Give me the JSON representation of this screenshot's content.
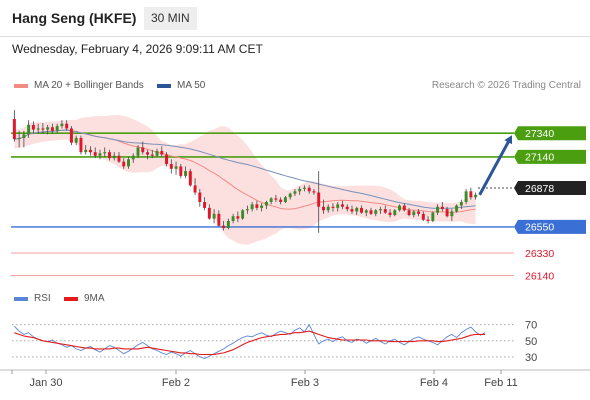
{
  "header": {
    "title": "Hang Seng (HKFE)",
    "timeframe": "30 MIN"
  },
  "date_line": "Wednesday, February 4, 2026 9:09:11 AM CET",
  "legend": {
    "price": [
      {
        "label": "MA 20 + Bollinger Bands",
        "color": "#f28b82"
      },
      {
        "label": "MA 50",
        "color": "#2a5597"
      }
    ],
    "rsi": [
      {
        "label": "RSI",
        "color": "#5b86d6"
      },
      {
        "label": "9MA",
        "color": "#e31b1b"
      }
    ]
  },
  "credit": "Research © 2026 Trading Central",
  "colors": {
    "up": "#3a8c28",
    "down": "#e0162b",
    "resistance": "#4a9e0f",
    "support": "#3a6fd6",
    "target": "#f0a0a0",
    "arrow": "#2a5597"
  },
  "chart_data": [
    {
      "type": "candlestick",
      "ylim": [
        26060,
        27620
      ],
      "x_ticks": [
        "Jan 30",
        "Feb 2",
        "Feb 3",
        "Feb 4",
        "Feb 11"
      ],
      "levels": {
        "resistance": [
          "27340",
          "27140"
        ],
        "last": "26878",
        "support": [
          "26550"
        ],
        "targets": [
          "26330",
          "26140"
        ]
      },
      "ohlc": [
        [
          27460,
          27535,
          27270,
          27290
        ],
        [
          27290,
          27360,
          27220,
          27300
        ],
        [
          27300,
          27360,
          27220,
          27330
        ],
        [
          27330,
          27450,
          27300,
          27410
        ],
        [
          27410,
          27440,
          27340,
          27370
        ],
        [
          27370,
          27420,
          27340,
          27380
        ],
        [
          27380,
          27425,
          27340,
          27370
        ],
        [
          27370,
          27410,
          27330,
          27390
        ],
        [
          27390,
          27420,
          27340,
          27360
        ],
        [
          27360,
          27420,
          27340,
          27400
        ],
        [
          27400,
          27450,
          27380,
          27420
        ],
        [
          27420,
          27450,
          27360,
          27380
        ],
        [
          27380,
          27400,
          27240,
          27260
        ],
        [
          27260,
          27320,
          27240,
          27300
        ],
        [
          27300,
          27320,
          27160,
          27180
        ],
        [
          27180,
          27240,
          27160,
          27200
        ],
        [
          27200,
          27230,
          27150,
          27180
        ],
        [
          27180,
          27220,
          27130,
          27150
        ],
        [
          27150,
          27200,
          27120,
          27170
        ],
        [
          27170,
          27220,
          27140,
          27180
        ],
        [
          27180,
          27200,
          27110,
          27130
        ],
        [
          27130,
          27180,
          27110,
          27150
        ],
        [
          27150,
          27180,
          27090,
          27100
        ],
        [
          27100,
          27130,
          27040,
          27060
        ],
        [
          27060,
          27140,
          27040,
          27120
        ],
        [
          27120,
          27170,
          27090,
          27150
        ],
        [
          27150,
          27240,
          27130,
          27220
        ],
        [
          27220,
          27270,
          27160,
          27180
        ],
        [
          27180,
          27200,
          27120,
          27160
        ],
        [
          27160,
          27200,
          27130,
          27150
        ],
        [
          27150,
          27210,
          27140,
          27190
        ],
        [
          27190,
          27230,
          27140,
          27160
        ],
        [
          27160,
          27180,
          27060,
          27080
        ],
        [
          27080,
          27120,
          27000,
          27040
        ],
        [
          27040,
          27100,
          26990,
          27060
        ],
        [
          27060,
          27080,
          26960,
          26980
        ],
        [
          26980,
          27060,
          26960,
          27020
        ],
        [
          27020,
          27040,
          26890,
          26900
        ],
        [
          26900,
          26960,
          26820,
          26840
        ],
        [
          26840,
          26870,
          26720,
          26760
        ],
        [
          26760,
          26800,
          26690,
          26710
        ],
        [
          26710,
          26740,
          26610,
          26620
        ],
        [
          26620,
          26700,
          26580,
          26660
        ],
        [
          26660,
          26690,
          26550,
          26560
        ],
        [
          26560,
          26600,
          26520,
          26540
        ],
        [
          26540,
          26620,
          26530,
          26600
        ],
        [
          26600,
          26660,
          26580,
          26640
        ],
        [
          26640,
          26680,
          26590,
          26620
        ],
        [
          26620,
          26700,
          26610,
          26690
        ],
        [
          26690,
          26730,
          26660,
          26700
        ],
        [
          26700,
          26760,
          26680,
          26740
        ],
        [
          26740,
          26770,
          26690,
          26710
        ],
        [
          26710,
          26750,
          26680,
          26730
        ],
        [
          26730,
          26770,
          26700,
          26760
        ],
        [
          26760,
          26800,
          26740,
          26790
        ],
        [
          26790,
          26820,
          26760,
          26780
        ],
        [
          26780,
          26800,
          26740,
          26760
        ],
        [
          26760,
          26810,
          26750,
          26800
        ],
        [
          26800,
          26840,
          26780,
          26830
        ],
        [
          26830,
          26870,
          26810,
          26850
        ],
        [
          26850,
          26890,
          26820,
          26870
        ],
        [
          26870,
          26900,
          26850,
          26880
        ],
        [
          26880,
          26900,
          26830,
          26850
        ],
        [
          26850,
          26870,
          26820,
          26840
        ],
        [
          26840,
          27020,
          26500,
          26720
        ],
        [
          26720,
          26780,
          26660,
          26690
        ],
        [
          26690,
          26740,
          26670,
          26720
        ],
        [
          26720,
          26750,
          26680,
          26710
        ],
        [
          26710,
          26760,
          26680,
          26740
        ],
        [
          26740,
          26770,
          26700,
          26720
        ],
        [
          26720,
          26740,
          26680,
          26700
        ],
        [
          26700,
          26730,
          26660,
          26680
        ],
        [
          26680,
          26720,
          26650,
          26710
        ],
        [
          26710,
          26730,
          26660,
          26670
        ],
        [
          26670,
          26700,
          26640,
          26690
        ],
        [
          26690,
          26710,
          26650,
          26660
        ],
        [
          26660,
          26700,
          26640,
          26690
        ],
        [
          26690,
          26720,
          26660,
          26700
        ],
        [
          26700,
          26730,
          26660,
          26670
        ],
        [
          26670,
          26700,
          26630,
          26650
        ],
        [
          26650,
          26700,
          26640,
          26690
        ],
        [
          26690,
          26740,
          26680,
          26730
        ],
        [
          26730,
          26750,
          26680,
          26690
        ],
        [
          26690,
          26710,
          26640,
          26650
        ],
        [
          26650,
          26690,
          26630,
          26680
        ],
        [
          26680,
          26700,
          26640,
          26660
        ],
        [
          26660,
          26680,
          26600,
          26610
        ],
        [
          26610,
          26640,
          26580,
          26600
        ],
        [
          26600,
          26680,
          26590,
          26670
        ],
        [
          26670,
          26740,
          26650,
          26720
        ],
        [
          26720,
          26760,
          26680,
          26700
        ],
        [
          26700,
          26720,
          26630,
          26640
        ],
        [
          26640,
          26700,
          26600,
          26680
        ],
        [
          26680,
          26740,
          26670,
          26730
        ],
        [
          26730,
          26780,
          26700,
          26760
        ],
        [
          26760,
          26870,
          26740,
          26850
        ],
        [
          26850,
          26880,
          26780,
          26800
        ],
        [
          26800,
          26840,
          26780,
          26820
        ]
      ]
    },
    {
      "type": "line",
      "ylim": [
        20,
        82
      ],
      "y_ticks": [
        "70",
        "50",
        "30"
      ],
      "series": [
        {
          "name": "RSI",
          "values": [
            68,
            62,
            58,
            60,
            55,
            52,
            50,
            49,
            51,
            47,
            45,
            42,
            44,
            40,
            38,
            41,
            43,
            39,
            36,
            40,
            44,
            42,
            38,
            34,
            37,
            41,
            45,
            48,
            44,
            40,
            38,
            35,
            33,
            36,
            34,
            31,
            35,
            38,
            34,
            30,
            28,
            31,
            34,
            37,
            40,
            44,
            47,
            51,
            54,
            56,
            55,
            58,
            60,
            57,
            55,
            59,
            62,
            60,
            58,
            63,
            66,
            61,
            70,
            58,
            46,
            50,
            52,
            49,
            53,
            55,
            50,
            48,
            52,
            51,
            47,
            50,
            53,
            49,
            46,
            50,
            52,
            48,
            45,
            49,
            53,
            55,
            52,
            50,
            48,
            45,
            50,
            55,
            58,
            54,
            60,
            64,
            67,
            61,
            57,
            60
          ]
        },
        {
          "name": "9MA",
          "values": [
            60,
            58,
            56,
            55,
            54,
            52,
            50,
            49,
            48,
            47,
            46,
            45,
            44,
            43,
            42,
            41,
            41,
            40,
            40,
            40,
            40,
            41,
            41,
            40,
            40,
            40,
            40,
            41,
            42,
            41,
            40,
            39,
            38,
            37,
            36,
            35,
            35,
            34,
            34,
            33,
            33,
            33,
            33,
            34,
            35,
            37,
            39,
            42,
            45,
            48,
            50,
            52,
            54,
            55,
            56,
            57,
            58,
            58,
            59,
            60,
            60,
            61,
            62,
            60,
            58,
            56,
            54,
            53,
            52,
            51,
            51,
            51,
            51,
            51,
            51,
            50,
            50,
            50,
            50,
            49,
            49,
            49,
            49,
            49,
            49,
            50,
            50,
            50,
            50,
            49,
            49,
            50,
            51,
            52,
            53,
            55,
            57,
            58,
            58,
            58
          ]
        }
      ]
    }
  ]
}
